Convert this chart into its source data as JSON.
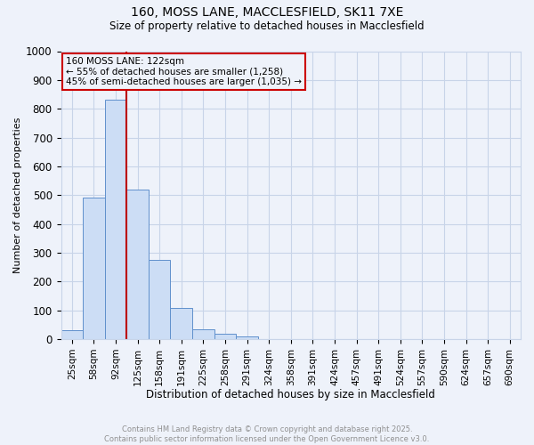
{
  "title_line1": "160, MOSS LANE, MACCLESFIELD, SK11 7XE",
  "title_line2": "Size of property relative to detached houses in Macclesfield",
  "xlabel": "Distribution of detached houses by size in Macclesfield",
  "ylabel": "Number of detached properties",
  "categories": [
    "25sqm",
    "58sqm",
    "92sqm",
    "125sqm",
    "158sqm",
    "191sqm",
    "225sqm",
    "258sqm",
    "291sqm",
    "324sqm",
    "358sqm",
    "391sqm",
    "424sqm",
    "457sqm",
    "491sqm",
    "524sqm",
    "557sqm",
    "590sqm",
    "624sqm",
    "657sqm",
    "690sqm"
  ],
  "values": [
    30,
    490,
    830,
    520,
    275,
    108,
    35,
    20,
    8,
    0,
    0,
    0,
    0,
    0,
    0,
    0,
    0,
    0,
    0,
    0,
    0
  ],
  "bar_color": "#ccddf5",
  "bar_edge_color": "#6090cc",
  "vline_x_index": 2,
  "vline_color": "#bb0000",
  "annotation_text": "160 MOSS LANE: 122sqm\n← 55% of detached houses are smaller (1,258)\n45% of semi-detached houses are larger (1,035) →",
  "annotation_box_color": "#cc0000",
  "annotation_text_color": "#000000",
  "ylim": [
    0,
    1000
  ],
  "yticks": [
    0,
    100,
    200,
    300,
    400,
    500,
    600,
    700,
    800,
    900,
    1000
  ],
  "grid_color": "#c8d4e8",
  "background_color": "#eef2fa",
  "footer_line1": "Contains HM Land Registry data © Crown copyright and database right 2025.",
  "footer_line2": "Contains public sector information licensed under the Open Government Licence v3.0.",
  "footer_color": "#909090"
}
